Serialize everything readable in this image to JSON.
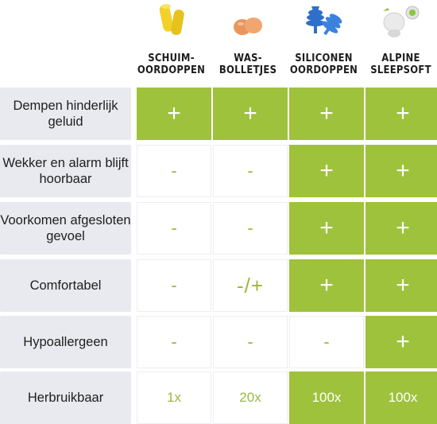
{
  "columns": [
    {
      "name": "SCHUIM-\nOORDOPPEN",
      "image": "yellow-foam-earplugs"
    },
    {
      "name": "WAS-\nBOLLETJES",
      "image": "orange-wax-balls"
    },
    {
      "name": "SILICONEN\nOORDOPPEN",
      "image": "blue-silicone-earplugs"
    },
    {
      "name": "ALPINE\nSLEEPSOFT",
      "image": "white-green-alpine-earplugs"
    }
  ],
  "rows": [
    {
      "label": "Dempen hinderlijk geluid",
      "values": [
        "+",
        "+",
        "+",
        "+"
      ]
    },
    {
      "label": "Wekker en alarm blijft hoorbaar",
      "values": [
        "-",
        "-",
        "+",
        "+"
      ]
    },
    {
      "label": "Voorkomen afgesloten gevoel",
      "values": [
        "-",
        "-",
        "+",
        "+"
      ]
    },
    {
      "label": "Comfortabel",
      "values": [
        "-",
        "-/+",
        "+",
        "+"
      ]
    },
    {
      "label": "Hypoallergeen",
      "values": [
        "-",
        "-",
        "-",
        "+"
      ]
    },
    {
      "label": "Herbruikbaar",
      "values": [
        "1x",
        "20x",
        "100x",
        "100x"
      ]
    }
  ],
  "colors": {
    "green": "#9ec23c",
    "label_bg": "#e8eaef",
    "cell_text": "#9ab83d"
  }
}
